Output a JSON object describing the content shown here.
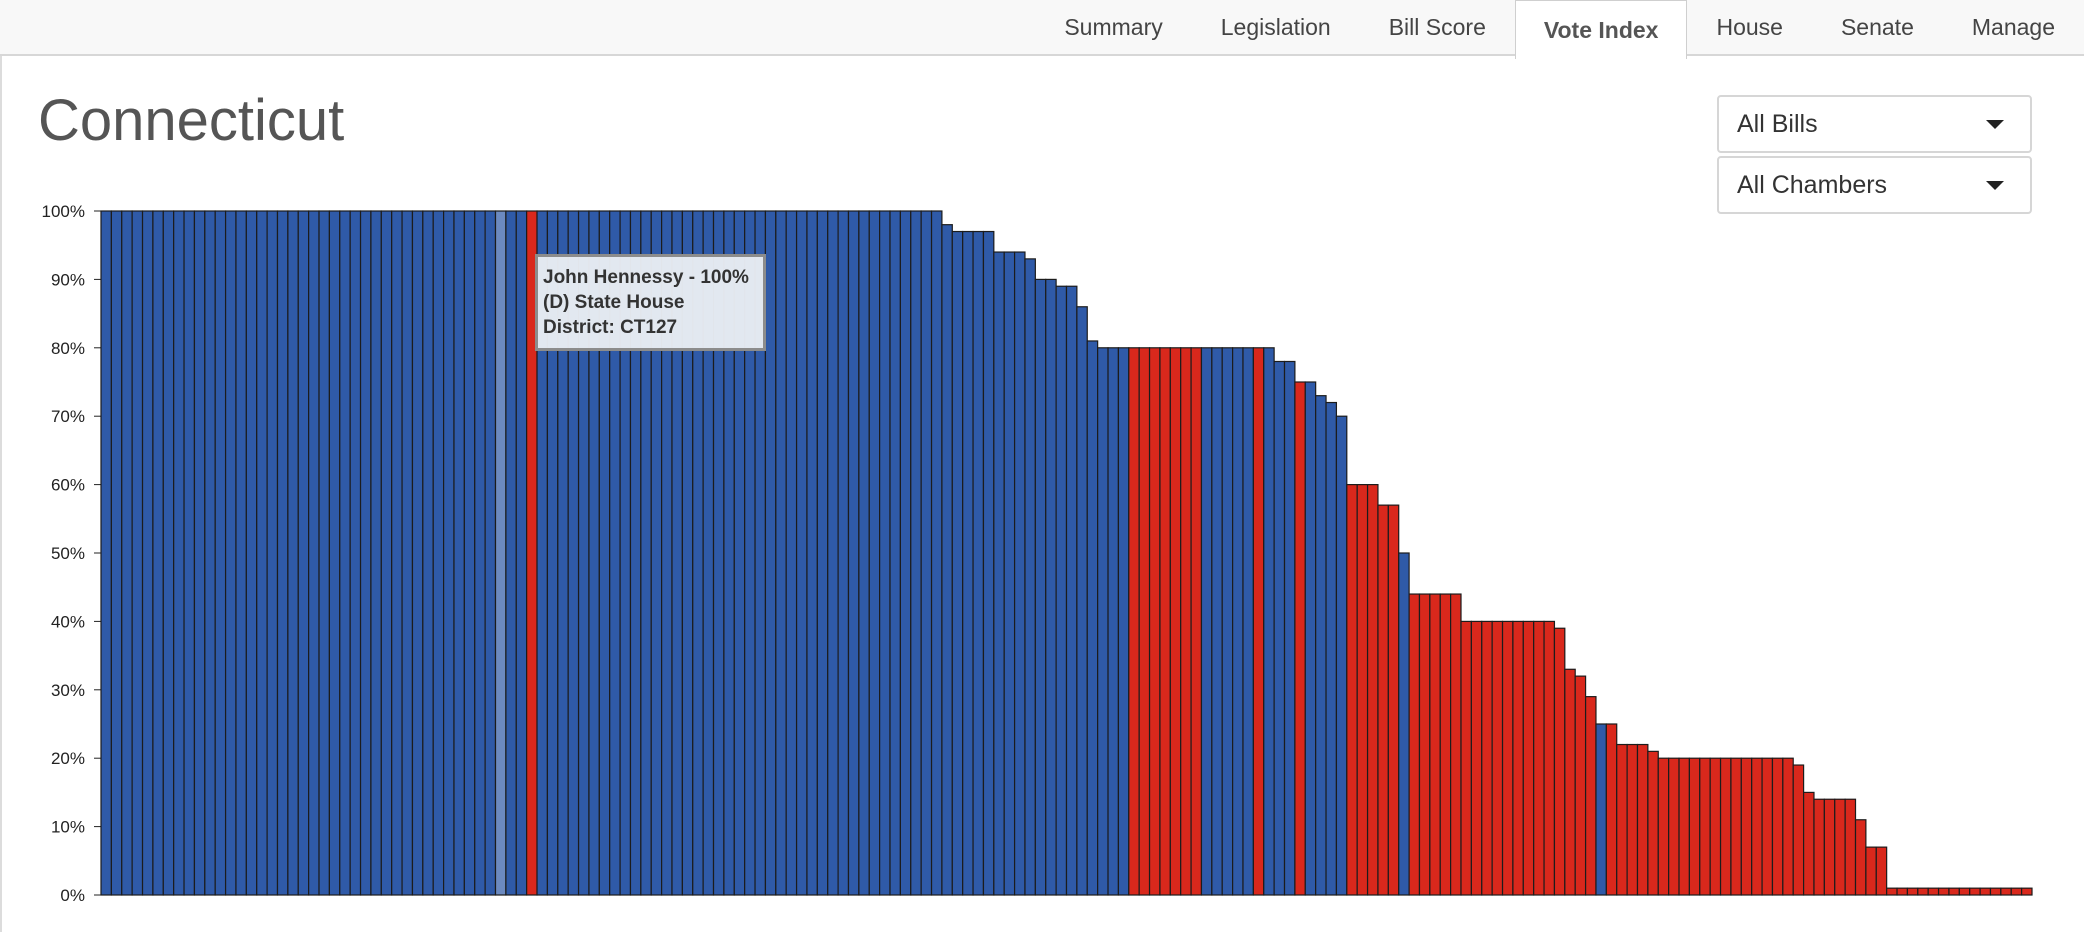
{
  "nav": {
    "tabs": [
      {
        "label": "Summary"
      },
      {
        "label": "Legislation"
      },
      {
        "label": "Bill Score"
      },
      {
        "label": "Vote Index",
        "active": true
      },
      {
        "label": "House"
      },
      {
        "label": "Senate"
      },
      {
        "label": "Manage"
      }
    ]
  },
  "page": {
    "title": "Connecticut"
  },
  "filters": {
    "bills": "All Bills",
    "chambers": "All Chambers"
  },
  "tooltip": {
    "line1": "John Hennessy - 100%",
    "line2": "(D) State House",
    "line3": "District: CT127"
  },
  "colors": {
    "democrat": "#2f5aa8",
    "republican": "#d9281c",
    "highlight": "#6c8ac0",
    "bar_stroke": "#1c1c1c"
  },
  "chart_data": {
    "type": "bar",
    "title": "",
    "xlabel": "",
    "ylabel": "",
    "ylim": [
      0,
      100
    ],
    "y_ticks": [
      "0%",
      "10%",
      "20%",
      "30%",
      "40%",
      "50%",
      "60%",
      "70%",
      "80%",
      "90%",
      "100%"
    ],
    "grid": false,
    "legend": "none",
    "highlighted_index": 38,
    "series": [
      {
        "party": "D",
        "count": 41,
        "values": [
          100
        ]
      },
      {
        "party": "R",
        "count": 1,
        "values": [
          100
        ]
      },
      {
        "party": "D",
        "count": 39,
        "values": [
          100
        ]
      },
      {
        "party": "D",
        "count": 5,
        "values": [
          98,
          97,
          97,
          97,
          97
        ]
      },
      {
        "party": "D",
        "count": 9,
        "values": [
          94,
          94,
          94,
          93,
          90,
          90,
          89,
          89,
          86
        ]
      },
      {
        "party": "D",
        "count": 4,
        "values": [
          81,
          80,
          80,
          80
        ]
      },
      {
        "party": "R",
        "count": 7,
        "values": [
          80
        ]
      },
      {
        "party": "D",
        "count": 5,
        "values": [
          80
        ]
      },
      {
        "party": "R",
        "count": 1,
        "values": [
          80
        ]
      },
      {
        "party": "D",
        "count": 3,
        "values": [
          80,
          78,
          78
        ]
      },
      {
        "party": "R",
        "count": 1,
        "values": [
          75
        ]
      },
      {
        "party": "D",
        "count": 4,
        "values": [
          75,
          73,
          72,
          70
        ]
      },
      {
        "party": "R",
        "count": 3,
        "values": [
          60,
          60,
          60
        ]
      },
      {
        "party": "R",
        "count": 2,
        "values": [
          57,
          57
        ]
      },
      {
        "party": "D",
        "count": 1,
        "values": [
          50
        ]
      },
      {
        "party": "R",
        "count": 5,
        "values": [
          44
        ]
      },
      {
        "party": "R",
        "count": 9,
        "values": [
          40
        ]
      },
      {
        "party": "R",
        "count": 4,
        "values": [
          39,
          33,
          32,
          29
        ]
      },
      {
        "party": "D",
        "count": 1,
        "values": [
          25
        ]
      },
      {
        "party": "R",
        "count": 1,
        "values": [
          25
        ]
      },
      {
        "party": "R",
        "count": 3,
        "values": [
          22
        ]
      },
      {
        "party": "R",
        "count": 1,
        "values": [
          21
        ]
      },
      {
        "party": "R",
        "count": 13,
        "values": [
          20
        ]
      },
      {
        "party": "R",
        "count": 1,
        "values": [
          19
        ]
      },
      {
        "party": "R",
        "count": 1,
        "values": [
          15
        ]
      },
      {
        "party": "R",
        "count": 4,
        "values": [
          14
        ]
      },
      {
        "party": "R",
        "count": 1,
        "values": [
          11
        ]
      },
      {
        "party": "R",
        "count": 2,
        "values": [
          7
        ]
      },
      {
        "party": "R",
        "count": 14,
        "values": [
          1
        ]
      }
    ]
  }
}
